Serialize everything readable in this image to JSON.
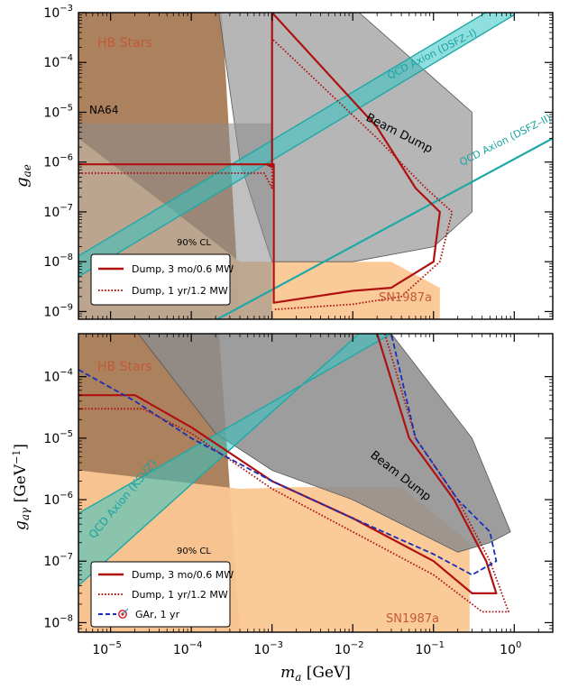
{
  "chart_data": [
    {
      "type": "area",
      "xlabel": "",
      "ylabel": "g_ae",
      "x_scale": "log",
      "y_scale": "log",
      "xlim": [
        4e-06,
        3.0
      ],
      "ylim": [
        7e-10,
        0.001
      ],
      "y_ticks": [
        "10^-9",
        "10^-8",
        "10^-7",
        "10^-6",
        "10^-5",
        "10^-4",
        "10^-3"
      ],
      "x_ticks": [],
      "annotations": {
        "hb": "HB Stars",
        "na64": "NA64",
        "beam_dump": "Beam Dump",
        "sn": "SN1987a",
        "cl": "90% CL",
        "qcd1": "QCD Axion (DSFZ–I)",
        "qcd2": "QCD Axion (DSFZ–II)"
      },
      "regions": [
        {
          "name": "HB Stars",
          "color": "#a87a55",
          "x": [
            4e-06,
            0.00024,
            0.0004,
            4e-06
          ],
          "y": [
            0.001,
            0.001,
            7e-10,
            7e-10
          ]
        },
        {
          "name": "SN1987a",
          "color": "#fbc793",
          "x": [
            4e-06,
            0.0004,
            0.03,
            0.12,
            0.12,
            0.05,
            4e-06
          ],
          "y": [
            3e-06,
            1e-08,
            1e-08,
            3e-09,
            7e-10,
            7e-10,
            7e-10
          ]
        },
        {
          "name": "Beam Dump",
          "color": "#a9a9a9",
          "x": [
            0.00022,
            0.001,
            0.012,
            0.3,
            0.3,
            0.1,
            0.01,
            0.001,
            0.0004
          ],
          "y": [
            0.001,
            0.001,
            0.001,
            1e-05,
            1e-07,
            2e-08,
            1e-08,
            1e-08,
            1e-06
          ]
        },
        {
          "name": "NA64",
          "color": "#8c8c8c",
          "x": [
            4e-06,
            0.001,
            0.001,
            4e-06
          ],
          "y": [
            6e-06,
            6e-06,
            7e-10,
            7e-10
          ]
        }
      ],
      "series": [
        {
          "name": "Dump, 3 mo/0.6 MW",
          "color": "#b01010",
          "style": "solid",
          "x": [
            4e-06,
            0.00085,
            0.001,
            0.001,
            0.02,
            0.06,
            0.12,
            0.1,
            0.03,
            0.01,
            0.00105,
            0.00105,
            0.00085,
            4e-06
          ],
          "y": [
            9e-07,
            9e-07,
            8e-07,
            0.001,
            5e-06,
            3e-07,
            1e-07,
            1e-08,
            3e-09,
            2.6e-09,
            1.5e-09,
            9e-07,
            9e-07,
            9e-07
          ]
        },
        {
          "name": "Dump, 1 yr/1.2 MW",
          "color": "#b01010",
          "style": "dotted",
          "x": [
            4e-06,
            0.0008,
            0.001,
            0.001,
            0.02,
            0.08,
            0.17,
            0.12,
            0.04,
            0.01,
            0.00105
          ],
          "y": [
            6e-07,
            6e-07,
            3e-07,
            0.0003,
            3e-06,
            3e-07,
            1e-07,
            1e-08,
            2e-09,
            1.4e-09,
            1.1e-09
          ]
        }
      ],
      "legend_position": "lower-left"
    },
    {
      "type": "area",
      "xlabel": "m_a [GeV]",
      "ylabel": "g_aγ [GeV^-1]",
      "x_scale": "log",
      "y_scale": "log",
      "xlim": [
        4e-06,
        3.0
      ],
      "ylim": [
        7e-09,
        0.0005
      ],
      "x_ticks": [
        "10^-5",
        "10^-4",
        "10^-3",
        "10^-2",
        "10^-1",
        "10^0"
      ],
      "y_ticks": [
        "10^-8",
        "10^-7",
        "10^-6",
        "10^-5",
        "10^-4"
      ],
      "annotations": {
        "hb": "HB Stars",
        "beam_dump": "Beam Dump",
        "sn": "SN1987a",
        "cl": "90% CL",
        "qcd": "QCD Axion (KSVZ)"
      },
      "regions": [
        {
          "name": "HB Stars",
          "color": "#a87a55",
          "x": [
            4e-06,
            0.00022,
            0.0004,
            4e-06
          ],
          "y": [
            0.0005,
            0.0005,
            7e-09,
            7e-09
          ]
        },
        {
          "name": "SN1987a",
          "color": "#fbc793",
          "x": [
            4e-06,
            0.0004,
            0.002,
            0.04,
            0.28,
            0.28,
            4e-06
          ],
          "y": [
            3e-06,
            1.5e-06,
            1.6e-06,
            1.6e-06,
            2e-07,
            7e-09,
            7e-09
          ]
        },
        {
          "name": "Beam Dump",
          "color": "#8c8c8c",
          "x": [
            2.2e-05,
            0.03,
            0.3,
            0.9,
            0.5,
            0.2,
            0.01,
            0.001,
            0.0002
          ],
          "y": [
            0.0005,
            0.0005,
            1e-05,
            3e-07,
            2e-07,
            1.4e-07,
            1e-06,
            3e-06,
            1.2e-05
          ]
        }
      ],
      "series": [
        {
          "name": "Dump, 3 mo/0.6 MW",
          "color": "#b01010",
          "style": "solid",
          "x": [
            4e-06,
            2e-05,
            0.0001,
            0.001,
            0.01,
            0.1,
            0.3,
            0.6,
            0.45,
            0.18,
            0.05,
            0.02
          ],
          "y": [
            5e-05,
            5e-05,
            1.5e-05,
            2e-06,
            5e-07,
            1e-07,
            3e-08,
            3e-08,
            1e-07,
            1e-06,
            1e-05,
            0.0005
          ]
        },
        {
          "name": "Dump, 1 yr/1.2 MW",
          "color": "#b01010",
          "style": "dotted",
          "x": [
            4e-06,
            2.5e-05,
            0.0001,
            0.001,
            0.01,
            0.1,
            0.4,
            0.85,
            0.5,
            0.2,
            0.06,
            0.025
          ],
          "y": [
            3e-05,
            3e-05,
            1.2e-05,
            1.5e-06,
            3e-07,
            6e-08,
            1.5e-08,
            1.5e-08,
            1e-07,
            1e-06,
            1e-05,
            0.0005
          ]
        },
        {
          "name": "GAr, 1 yr",
          "color": "#1a2eb8",
          "style": "dashed",
          "x": [
            4e-06,
            2e-05,
            0.0001,
            0.001,
            0.01,
            0.1,
            0.3,
            0.6,
            0.5,
            0.2,
            0.06,
            0.03
          ],
          "y": [
            0.00013,
            4e-05,
            1e-05,
            2e-06,
            5e-07,
            1.3e-07,
            6e-08,
            1e-07,
            3e-07,
            1e-06,
            1e-05,
            0.0005
          ]
        }
      ],
      "legend_position": "lower-left"
    }
  ],
  "colors": {
    "hb": "#a87a55",
    "sn": "#fbc793",
    "beam_dump": "#a9a9a9",
    "na64": "#8c8c8c",
    "qcd": "#33c4c2",
    "dump": "#b01010",
    "gar": "#1a2eb8"
  },
  "icons": {
    "gar": "target-icon"
  }
}
